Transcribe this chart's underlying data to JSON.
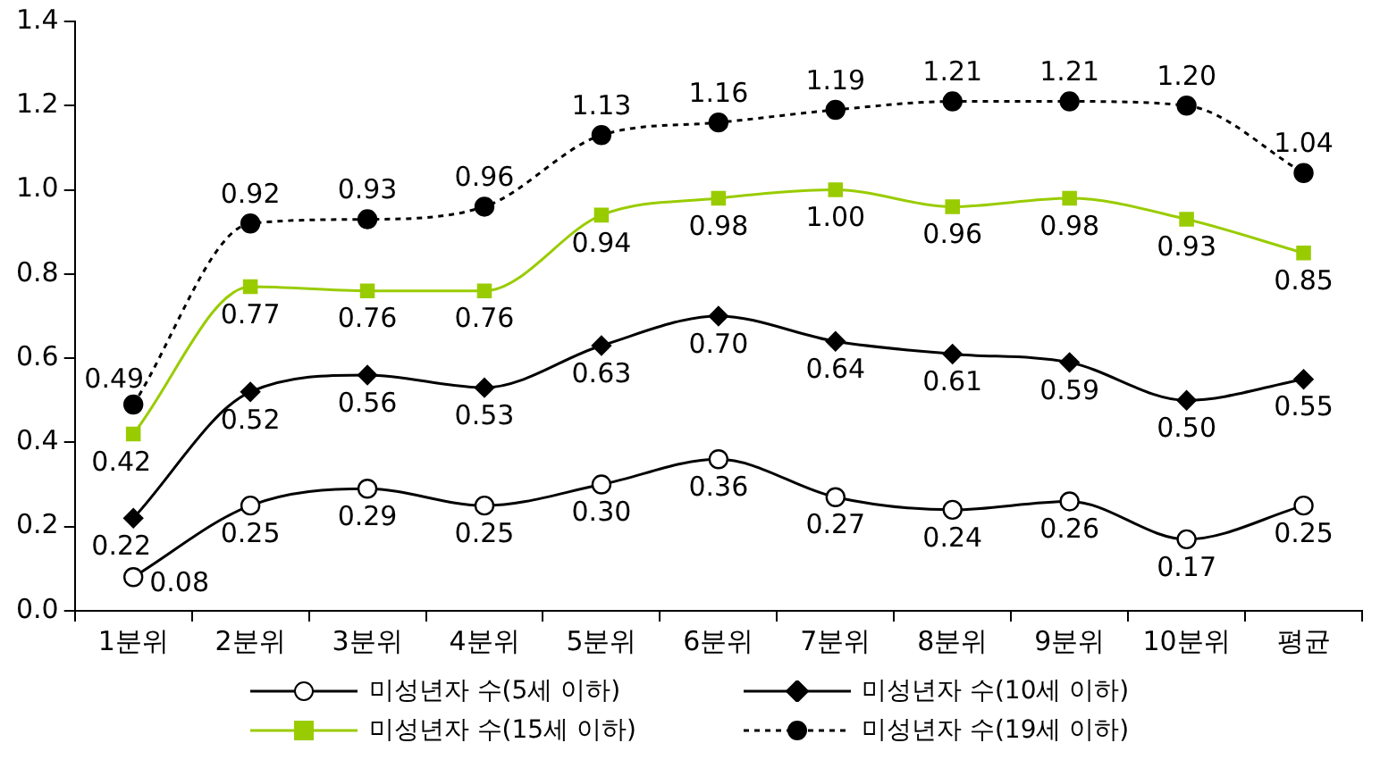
{
  "chart_data": {
    "type": "line",
    "categories": [
      "1분위",
      "2분위",
      "3분위",
      "4분위",
      "5분위",
      "6분위",
      "7분위",
      "8분위",
      "9분위",
      "10분위",
      "평균"
    ],
    "series": [
      {
        "name": "미성년자 수(5세 이하)",
        "color": "#000000",
        "marker": "circle",
        "line_style": "solid",
        "values": [
          0.08,
          0.25,
          0.29,
          0.25,
          0.3,
          0.36,
          0.27,
          0.24,
          0.26,
          0.17,
          0.25
        ],
        "value_labels": [
          "0.08",
          "0.25",
          "0.29",
          "0.25",
          "0.30",
          "0.36",
          "0.27",
          "0.24",
          "0.26",
          "0.17",
          "0.25"
        ]
      },
      {
        "name": "미성년자 수(10세 이하)",
        "color": "#000000",
        "marker": "diamond",
        "line_style": "solid",
        "values": [
          0.22,
          0.52,
          0.56,
          0.53,
          0.63,
          0.7,
          0.64,
          0.61,
          0.59,
          0.5,
          0.55
        ],
        "value_labels": [
          "0.22",
          "0.52",
          "0.56",
          "0.53",
          "0.63",
          "0.70",
          "0.64",
          "0.61",
          "0.59",
          "0.50",
          "0.55"
        ]
      },
      {
        "name": "미성년자 수(15세 이하)",
        "color": "#99cc00",
        "marker": "square",
        "line_style": "solid",
        "values": [
          0.42,
          0.77,
          0.76,
          0.76,
          0.94,
          0.98,
          1.0,
          0.96,
          0.98,
          0.93,
          0.85
        ],
        "value_labels": [
          "0.42",
          "0.77",
          "0.76",
          "0.76",
          "0.94",
          "0.98",
          "1.00",
          "0.96",
          "0.98",
          "0.93",
          "0.85"
        ]
      },
      {
        "name": "미성년자 수(19세 이하)",
        "color": "#000000",
        "marker": "circle",
        "line_style": "dotted",
        "values": [
          0.49,
          0.92,
          0.93,
          0.96,
          1.13,
          1.16,
          1.19,
          1.21,
          1.21,
          1.2,
          1.04
        ],
        "value_labels": [
          "0.49",
          "0.92",
          "0.93",
          "0.96",
          "1.13",
          "1.16",
          "1.19",
          "1.21",
          "1.21",
          "1.20",
          "1.04"
        ]
      }
    ],
    "ylim": [
      0,
      1.4
    ],
    "yticks": [
      {
        "value": 0,
        "label": "0.0"
      },
      {
        "value": 0.2,
        "label": "0.2"
      },
      {
        "value": 0.4,
        "label": "0.4"
      },
      {
        "value": 0.6,
        "label": "0.6"
      },
      {
        "value": 0.8,
        "label": "0.8"
      },
      {
        "value": 1.0,
        "label": "1.0"
      },
      {
        "value": 1.2,
        "label": "1.2"
      },
      {
        "value": 1.4,
        "label": "1.4"
      }
    ],
    "grid": false,
    "legend": "bottom"
  }
}
